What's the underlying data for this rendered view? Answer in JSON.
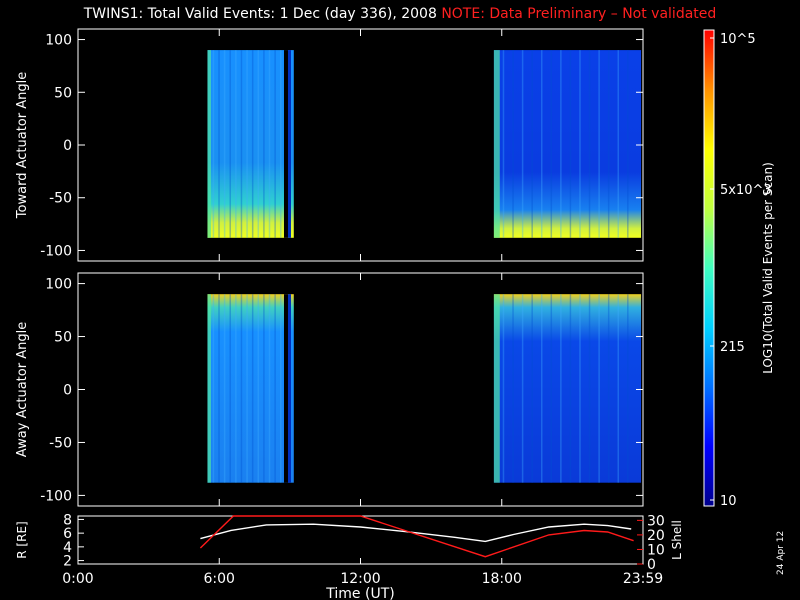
{
  "title": {
    "main": "TWINS1: Total Valid Events:  1 Dec (day 336), 2008",
    "note": "NOTE: Data Preliminary – Not validated"
  },
  "date_stamp": "24 Apr 12",
  "colorbar": {
    "label": "LOG10(Total Valid Events per Scan)",
    "ticks": [
      "10",
      "215",
      "5x10^3",
      "10^5"
    ],
    "colors": [
      "#00008c",
      "#0000ff",
      "#0070ff",
      "#00d0ff",
      "#40ffc0",
      "#c0ff40",
      "#ffff00",
      "#ff9000",
      "#ff0000"
    ]
  },
  "chart_data": [
    {
      "type": "heatmap",
      "panel": "Toward Actuator Angle",
      "ylabel": "Toward Actuator Angle",
      "xlim": [
        0,
        24
      ],
      "ylim": [
        -110,
        110
      ],
      "yticks": [
        -100,
        -50,
        0,
        50,
        100
      ],
      "data_blocks": [
        {
          "x_start": "5:30",
          "x_end": "9:10",
          "y_range": [
            -88,
            90
          ]
        },
        {
          "x_start": "17:40",
          "x_end": "23:55",
          "y_range": [
            -88,
            90
          ]
        }
      ],
      "notes": "High counts (yellow) near -80 to -88 deg late in each block; low counts (blue) elsewhere"
    },
    {
      "type": "heatmap",
      "panel": "Away Actuator Angle",
      "ylabel": "Away Actuator Angle",
      "xlim": [
        0,
        24
      ],
      "ylim": [
        -110,
        110
      ],
      "yticks": [
        -100,
        -50,
        0,
        50,
        100
      ],
      "data_blocks": [
        {
          "x_start": "5:30",
          "x_end": "9:10",
          "y_range": [
            -88,
            90
          ]
        },
        {
          "x_start": "17:40",
          "x_end": "23:55",
          "y_range": [
            -88,
            90
          ]
        }
      ],
      "notes": "High counts (yellow/orange) near +80 to +90 deg; low counts (blue) elsewhere"
    },
    {
      "type": "line",
      "ylabel_left": "R [RE]",
      "ylabel_right": "L Shell",
      "xlabel": "Time (UT)",
      "xtick_labels": [
        "0:00",
        "6:00",
        "12:00",
        "18:00",
        "23:59"
      ],
      "xlim": [
        0,
        24
      ],
      "yticks_left": [
        2,
        4,
        6,
        8
      ],
      "ylim_left": [
        1.5,
        8.5
      ],
      "yticks_right": [
        0,
        10,
        20,
        30
      ],
      "ylim_right": [
        0,
        33
      ],
      "series": [
        {
          "name": "R",
          "color": "#ffffff",
          "x": [
            5.2,
            6.5,
            8.0,
            10.0,
            12.0,
            14.0,
            16.0,
            17.3,
            18.5,
            20.0,
            21.5,
            22.5,
            23.5
          ],
          "values": [
            5.2,
            6.4,
            7.2,
            7.3,
            6.9,
            6.2,
            5.4,
            4.8,
            5.8,
            6.9,
            7.3,
            7.1,
            6.6
          ]
        },
        {
          "name": "L Shell",
          "color": "#ff1a1a",
          "x": [
            5.2,
            6.6,
            12.0,
            17.3,
            20.0,
            21.5,
            22.5,
            23.6
          ],
          "values": [
            11,
            33,
            33,
            5,
            20,
            23,
            22,
            16
          ]
        }
      ]
    }
  ]
}
